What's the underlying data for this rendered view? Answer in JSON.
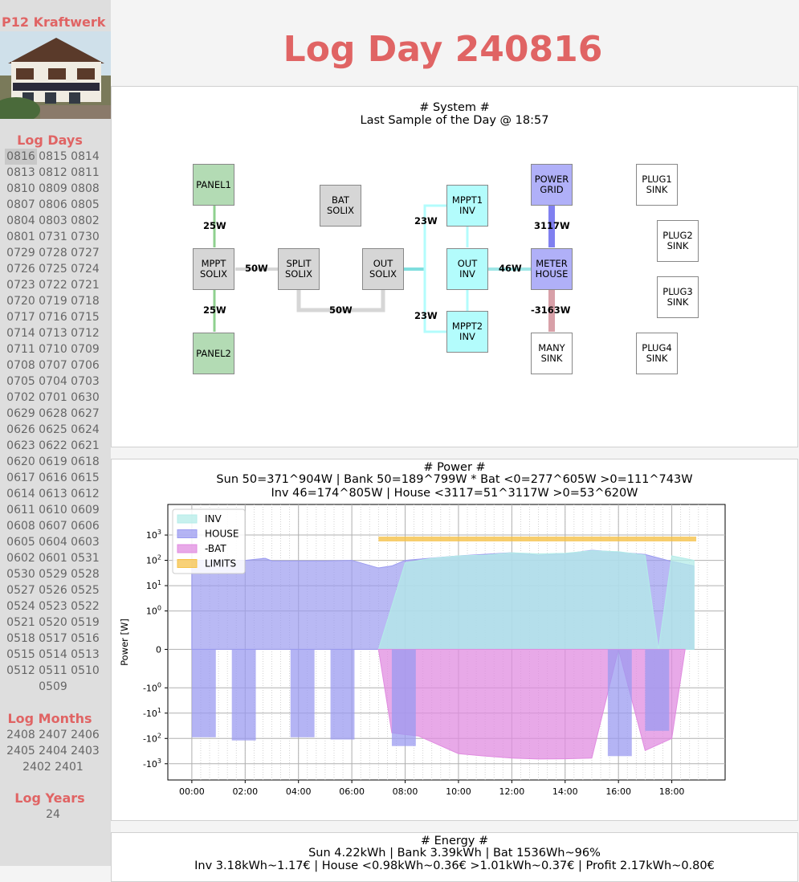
{
  "site_title": "P12 Kraftwerk",
  "page_title": "Log Day 240816",
  "sidebar": {
    "days_heading": "Log Days",
    "days": [
      "0816",
      "0815",
      "0814",
      "0813",
      "0812",
      "0811",
      "0810",
      "0809",
      "0808",
      "0807",
      "0806",
      "0805",
      "0804",
      "0803",
      "0802",
      "0801",
      "0731",
      "0730",
      "0729",
      "0728",
      "0727",
      "0726",
      "0725",
      "0724",
      "0723",
      "0722",
      "0721",
      "0720",
      "0719",
      "0718",
      "0717",
      "0716",
      "0715",
      "0714",
      "0713",
      "0712",
      "0711",
      "0710",
      "0709",
      "0708",
      "0707",
      "0706",
      "0705",
      "0704",
      "0703",
      "0702",
      "0701",
      "0630",
      "0629",
      "0628",
      "0627",
      "0626",
      "0625",
      "0624",
      "0623",
      "0622",
      "0621",
      "0620",
      "0619",
      "0618",
      "0617",
      "0616",
      "0615",
      "0614",
      "0613",
      "0612",
      "0611",
      "0610",
      "0609",
      "0608",
      "0607",
      "0606",
      "0605",
      "0604",
      "0603",
      "0602",
      "0601",
      "0531",
      "0530",
      "0529",
      "0528",
      "0527",
      "0526",
      "0525",
      "0524",
      "0523",
      "0522",
      "0521",
      "0520",
      "0519",
      "0518",
      "0517",
      "0516",
      "0515",
      "0514",
      "0513",
      "0512",
      "0511",
      "0510",
      "0509"
    ],
    "active_day": "0816",
    "months_heading": "Log Months",
    "months": [
      "2408",
      "2407",
      "2406",
      "2405",
      "2404",
      "2403",
      "2402",
      "2401"
    ],
    "years_heading": "Log Years",
    "years": [
      "24"
    ]
  },
  "system": {
    "title": "# System #",
    "subtitle": "Last Sample of the Day @ 18:57",
    "nodes": {
      "panel1": "PANEL1",
      "panel2": "PANEL2",
      "mppt_solix": "MPPT\nSOLIX",
      "bat_solix": "BAT\nSOLIX",
      "split_solix": "SPLIT\nSOLIX",
      "out_solix": "OUT\nSOLIX",
      "mppt1_inv": "MPPT1\nINV",
      "out_inv": "OUT\nINV",
      "mppt2_inv": "MPPT2\nINV",
      "power_grid": "POWER\nGRID",
      "meter_house": "METER\nHOUSE",
      "many_sink": "MANY\nSINK",
      "plug1_sink": "PLUG1\nSINK",
      "plug2_sink": "PLUG2\nSINK",
      "plug3_sink": "PLUG3\nSINK",
      "plug4_sink": "PLUG4\nSINK"
    },
    "flows": {
      "panel1_mppt": "25W",
      "panel2_mppt": "25W",
      "mppt_split": "50W",
      "split_out": "50W",
      "mppt1": "23W",
      "mppt2": "23W",
      "inv_house": "46W",
      "grid_house": "3117W",
      "house_sink": "-3163W"
    },
    "colors": {
      "green": "#b3dbb4",
      "gray": "#d6d6d6",
      "cyan": "#b3fcfc",
      "blue": "#b0b0f8",
      "pink": "#e0a8b0"
    }
  },
  "power": {
    "title": "# Power #",
    "line1": "Sun 50=371^904W | Bank 50=189^799W * Bat <0=277^605W >0=111^743W",
    "line2": "Inv 46=174^805W | House <3117=51^3117W >0=53^620W"
  },
  "energy": {
    "title": "# Energy #",
    "line1": "Sun 4.22kWh | Bank 3.39kWh | Bat 1536Wh~96%",
    "line2": "Inv 3.18kWh~1.17€ | House <0.98kWh~0.36€ >1.01kWh~0.37€ | Profit 2.17kWh~0.80€"
  },
  "chart_data": {
    "type": "area",
    "title": "",
    "xlabel": "",
    "ylabel": "Power [W]",
    "yscale": "symlog",
    "xlim": [
      "00:00",
      "19:00"
    ],
    "x_ticks": [
      "00:00",
      "02:00",
      "04:00",
      "06:00",
      "08:00",
      "10:00",
      "12:00",
      "14:00",
      "16:00",
      "18:00"
    ],
    "y_ticks": [
      "-10^3",
      "-10^2",
      "-10^1",
      "-10^0",
      "0",
      "10^0",
      "10^1",
      "10^2",
      "10^3"
    ],
    "legend": [
      "INV",
      "HOUSE",
      "-BAT",
      "LIMITS"
    ],
    "legend_position": "top-left",
    "grid": true,
    "colors": {
      "INV": "#b4ece8",
      "HOUSE": "#9b9bf0",
      "-BAT": "#e08ce0",
      "LIMITS": "#f5c24a"
    },
    "series": [
      {
        "name": "INV",
        "x": [
          "07:00",
          "08:00",
          "09:00",
          "10:00",
          "11:00",
          "12:00",
          "13:00",
          "14:00",
          "15:00",
          "16:00",
          "17:00",
          "17:30",
          "18:00",
          "18:50"
        ],
        "values": [
          0,
          80,
          120,
          150,
          160,
          200,
          180,
          190,
          240,
          220,
          160,
          0,
          150,
          100
        ]
      },
      {
        "name": "HOUSE",
        "x": [
          "00:00",
          "01:00",
          "02:00",
          "02:45",
          "03:00",
          "04:00",
          "05:00",
          "06:00",
          "07:00",
          "07:30",
          "08:00",
          "10:00",
          "12:00",
          "13:00",
          "14:00",
          "15:00",
          "16:00",
          "17:00",
          "18:00",
          "18:50"
        ],
        "values": [
          100,
          100,
          100,
          120,
          95,
          95,
          95,
          100,
          50,
          60,
          100,
          150,
          200,
          160,
          180,
          250,
          210,
          170,
          90,
          60
        ]
      },
      {
        "name": "-BAT",
        "x": [
          "07:00",
          "07:30",
          "08:00",
          "08:30",
          "10:00",
          "11:00",
          "12:00",
          "13:00",
          "14:00",
          "15:00",
          "16:00",
          "17:00",
          "18:00",
          "18:30"
        ],
        "values": [
          0,
          -60,
          -70,
          -80,
          -400,
          -500,
          -600,
          -650,
          -640,
          -600,
          0,
          -300,
          -100,
          0
        ]
      },
      {
        "name": "LIMITS",
        "x": [
          "07:00",
          "18:55"
        ],
        "values": [
          700,
          700
        ]
      }
    ]
  }
}
